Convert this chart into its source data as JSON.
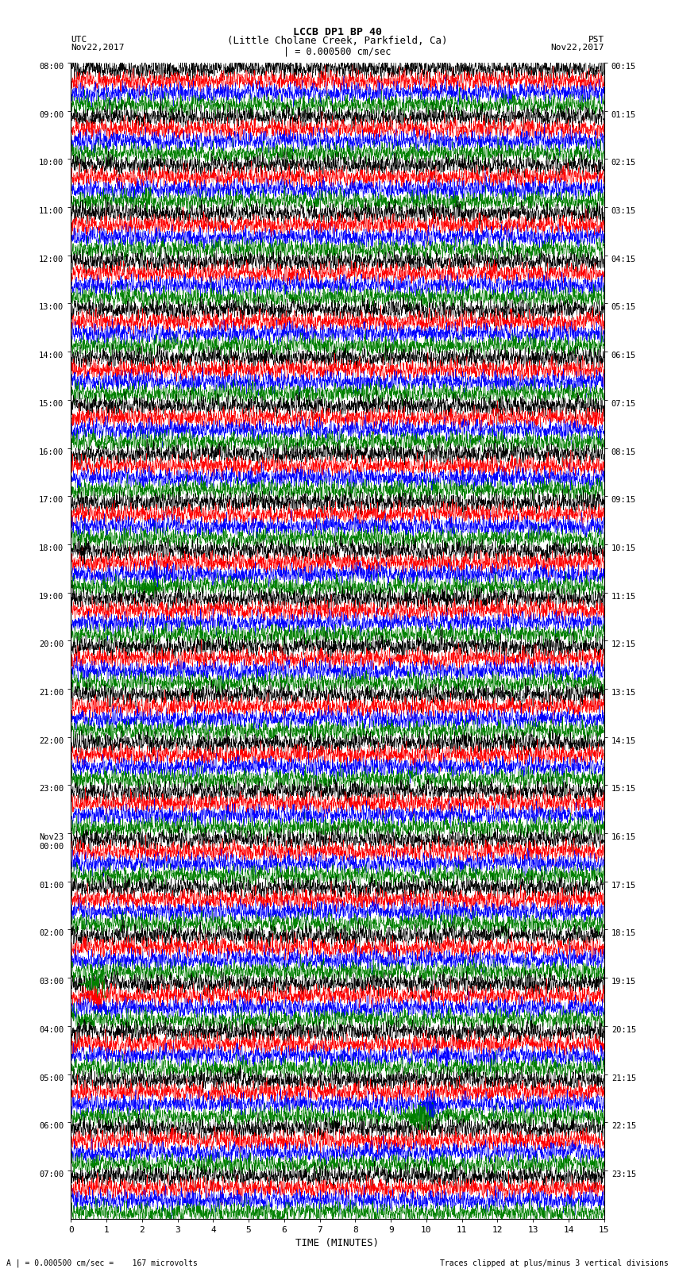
{
  "title_line1": "LCCB DP1 BP 40",
  "title_line2": "(Little Cholane Creek, Parkfield, Ca)",
  "scale_text": "| = 0.000500 cm/sec",
  "utc_label": "UTC",
  "utc_date": "Nov22,2017",
  "pst_label": "PST",
  "pst_date": "Nov22,2017",
  "xlabel": "TIME (MINUTES)",
  "bottom_left": "A | = 0.000500 cm/sec =    167 microvolts",
  "bottom_right": "Traces clipped at plus/minus 3 vertical divisions",
  "fig_width": 8.5,
  "fig_height": 16.13,
  "dpi": 100,
  "bg_color": "#ffffff",
  "trace_colors": [
    "black",
    "red",
    "blue",
    "green"
  ],
  "noise_amplitude": 0.12,
  "utc_times_left": [
    "08:00",
    "09:00",
    "10:00",
    "11:00",
    "12:00",
    "13:00",
    "14:00",
    "15:00",
    "16:00",
    "17:00",
    "18:00",
    "19:00",
    "20:00",
    "21:00",
    "22:00",
    "23:00",
    "Nov23\n00:00",
    "01:00",
    "02:00",
    "03:00",
    "04:00",
    "05:00",
    "06:00",
    "07:00"
  ],
  "pst_times_right": [
    "00:15",
    "01:15",
    "02:15",
    "03:15",
    "04:15",
    "05:15",
    "06:15",
    "07:15",
    "08:15",
    "09:15",
    "10:15",
    "11:15",
    "12:15",
    "13:15",
    "14:15",
    "15:15",
    "16:15",
    "17:15",
    "18:15",
    "19:15",
    "20:15",
    "21:15",
    "22:15",
    "23:15"
  ]
}
